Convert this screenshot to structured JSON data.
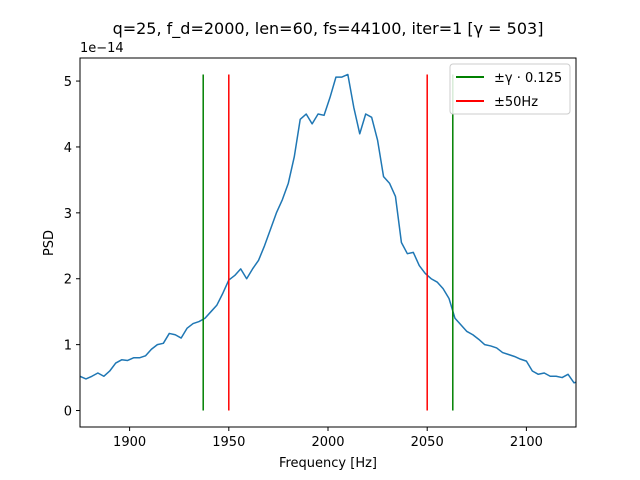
{
  "chart_data": {
    "type": "line",
    "title": "q=25, f_d=2000, len=60, fs=44100, iter=1 [γ = 503]",
    "xlabel": "Frequency [Hz]",
    "ylabel": "PSD",
    "y_offset_label": "1e−14",
    "xlim": [
      1875,
      2125
    ],
    "ylim": [
      -0.25,
      5.35
    ],
    "xticks": [
      1900,
      1950,
      2000,
      2050,
      2100
    ],
    "yticks": [
      0,
      1,
      2,
      3,
      4,
      5
    ],
    "grid": false,
    "legend_position": "top-right",
    "series": [
      {
        "name": "PSD",
        "color": "#1f77b4",
        "x": [
          1875,
          1878,
          1881,
          1884,
          1887,
          1890,
          1893,
          1896,
          1899,
          1902,
          1905,
          1908,
          1911,
          1914,
          1917,
          1920,
          1923,
          1926,
          1929,
          1932,
          1935,
          1938,
          1941,
          1944,
          1947,
          1950,
          1953,
          1956,
          1959,
          1962,
          1965,
          1968,
          1971,
          1974,
          1977,
          1980,
          1983,
          1986,
          1989,
          1992,
          1995,
          1998,
          2001,
          2004,
          2007,
          2010,
          2013,
          2016,
          2019,
          2022,
          2025,
          2028,
          2031,
          2034,
          2037,
          2040,
          2043,
          2046,
          2049,
          2052,
          2055,
          2058,
          2061,
          2064,
          2067,
          2070,
          2073,
          2076,
          2079,
          2082,
          2085,
          2088,
          2091,
          2094,
          2097,
          2100,
          2103,
          2106,
          2109,
          2112,
          2115,
          2118,
          2121,
          2124,
          2125
        ],
        "y": [
          0.52,
          0.48,
          0.52,
          0.57,
          0.52,
          0.6,
          0.72,
          0.77,
          0.76,
          0.8,
          0.8,
          0.83,
          0.93,
          1.0,
          1.02,
          1.17,
          1.15,
          1.1,
          1.25,
          1.32,
          1.35,
          1.4,
          1.5,
          1.6,
          1.78,
          1.98,
          2.05,
          2.15,
          2.0,
          2.15,
          2.28,
          2.5,
          2.75,
          3.0,
          3.2,
          3.45,
          3.85,
          4.42,
          4.5,
          4.35,
          4.5,
          4.48,
          4.75,
          5.06,
          5.06,
          5.1,
          4.6,
          4.2,
          4.5,
          4.45,
          4.1,
          3.55,
          3.45,
          3.25,
          2.55,
          2.38,
          2.4,
          2.2,
          2.08,
          2.0,
          1.95,
          1.85,
          1.7,
          1.4,
          1.3,
          1.2,
          1.15,
          1.08,
          1.0,
          0.98,
          0.95,
          0.88,
          0.85,
          0.82,
          0.78,
          0.75,
          0.6,
          0.55,
          0.57,
          0.52,
          0.52,
          0.5,
          0.55,
          0.42,
          0.43
        ]
      }
    ],
    "vlines": [
      {
        "legend": "±γ · 0.125",
        "color": "#008000",
        "x": [
          1937.1,
          2062.9
        ],
        "y_range": [
          0,
          5.1
        ]
      },
      {
        "legend": "±50Hz",
        "color": "#ff0000",
        "x": [
          1950,
          2050
        ],
        "y_range": [
          0,
          5.1
        ]
      }
    ]
  }
}
